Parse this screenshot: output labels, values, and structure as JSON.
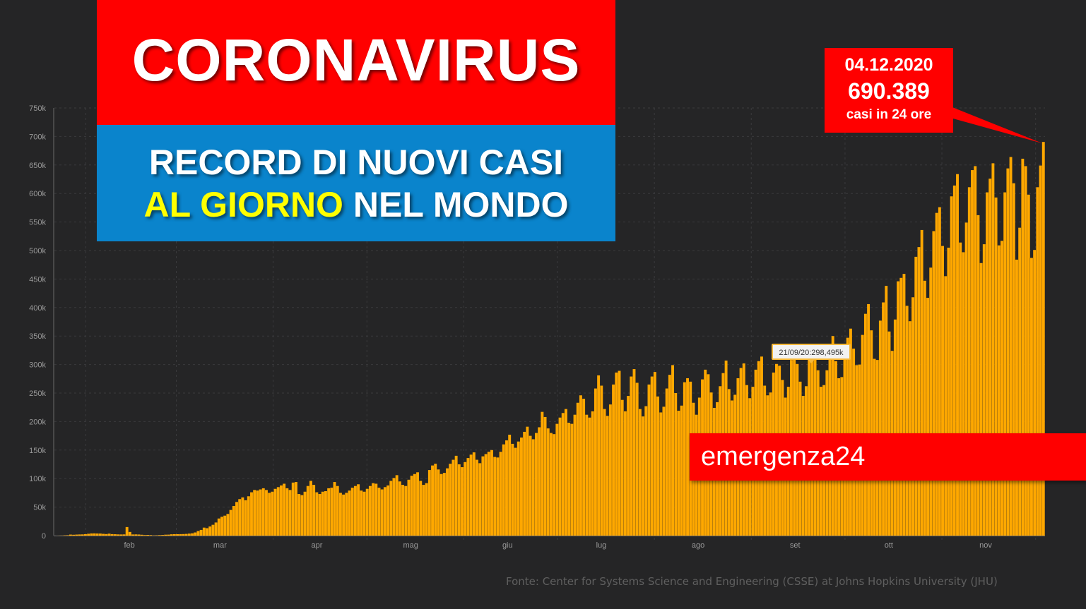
{
  "header": {
    "title": "CORONAVIRUS",
    "subtitle_line1": "RECORD DI NUOVI CASI",
    "subtitle_line2_highlight_a": "AL",
    "subtitle_line2_highlight_b": "GIORNO",
    "subtitle_line2_rest": "NEL MONDO"
  },
  "callout": {
    "date": "04.12.2020",
    "value": "690.389",
    "caption": "casi in 24 ore"
  },
  "tooltip": {
    "text": "21/09/20:298,495k"
  },
  "brand": {
    "text": "emergenza24"
  },
  "source": {
    "text": "Fonte: Center for Systems Science and Engineering (CSSE) at Johns Hopkins University (JHU)"
  },
  "colors": {
    "background": "#252526",
    "bar": "#ffa800",
    "title_red": "#ff0000",
    "subtitle_blue": "#0a84cc",
    "highlight_yellow": "#ffff00"
  },
  "chart_data": {
    "type": "bar",
    "xlabel": "",
    "ylabel": "",
    "ylim": [
      0,
      750000
    ],
    "y_ticks": [
      0,
      50000,
      100000,
      150000,
      200000,
      250000,
      300000,
      350000,
      400000,
      450000,
      500000,
      550000,
      600000,
      650000,
      700000,
      750000
    ],
    "y_tick_labels": [
      "0",
      "50k",
      "100k",
      "150k",
      "200k",
      "250k",
      "300k",
      "350k",
      "400k",
      "450k",
      "500k",
      "550k",
      "600k",
      "650k",
      "700k",
      "750k"
    ],
    "x_start": "2020-01-22",
    "x_end": "2020-12-04",
    "month_labels": [
      {
        "label": "feb",
        "date": "2020-02-15"
      },
      {
        "label": "mar",
        "date": "2020-03-15"
      },
      {
        "label": "apr",
        "date": "2020-04-15"
      },
      {
        "label": "mag",
        "date": "2020-05-15"
      },
      {
        "label": "giu",
        "date": "2020-06-15"
      },
      {
        "label": "lug",
        "date": "2020-07-15"
      },
      {
        "label": "ago",
        "date": "2020-08-15"
      },
      {
        "label": "set",
        "date": "2020-09-15"
      },
      {
        "label": "ott",
        "date": "2020-10-15"
      },
      {
        "label": "nov",
        "date": "2020-11-15"
      }
    ],
    "gridlines": true,
    "series": [
      {
        "values": [
          0,
          100,
          200,
          500,
          700,
          1800,
          1500,
          1800,
          2000,
          2100,
          2500,
          3200,
          3800,
          3900,
          3700,
          3600,
          3100,
          2700,
          3400,
          2600,
          2400,
          2100,
          2000,
          2100,
          15000,
          6400,
          2000,
          2100,
          1900,
          1500,
          1000,
          1200,
          900,
          400,
          600,
          900,
          1100,
          1600,
          1700,
          2300,
          2500,
          2500,
          2600,
          2700,
          3000,
          3500,
          4000,
          5500,
          8000,
          10000,
          14000,
          13000,
          16000,
          19000,
          23000,
          30000,
          33000,
          35000,
          38000,
          45000,
          52000,
          59000,
          64000,
          67000,
          62000,
          69000,
          76000,
          80000,
          79000,
          81000,
          83000,
          80000,
          75000,
          77000,
          82000,
          85000,
          88000,
          91000,
          83000,
          80000,
          93000,
          94000,
          73000,
          71000,
          77000,
          87000,
          96000,
          89000,
          76000,
          73000,
          77000,
          78000,
          83000,
          84000,
          94000,
          87000,
          75000,
          72000,
          75000,
          79000,
          84000,
          87000,
          90000,
          79000,
          77000,
          82000,
          87000,
          92000,
          91000,
          84000,
          81000,
          85000,
          88000,
          96000,
          101000,
          106000,
          95000,
          89000,
          87000,
          98000,
          105000,
          108000,
          111000,
          96000,
          89000,
          92000,
          115000,
          123000,
          126000,
          116000,
          108000,
          110000,
          118000,
          126000,
          133000,
          140000,
          125000,
          120000,
          129000,
          136000,
          142000,
          146000,
          133000,
          127000,
          139000,
          143000,
          147000,
          150000,
          138000,
          137000,
          147000,
          160000,
          167000,
          177000,
          161000,
          154000,
          165000,
          172000,
          182000,
          191000,
          175000,
          169000,
          180000,
          190000,
          217000,
          208000,
          188000,
          180000,
          178000,
          196000,
          207000,
          215000,
          222000,
          198000,
          196000,
          212000,
          233000,
          246000,
          240000,
          212000,
          207000,
          218000,
          258000,
          281000,
          263000,
          222000,
          210000,
          230000,
          265000,
          286000,
          289000,
          238000,
          218000,
          245000,
          279000,
          292000,
          268000,
          222000,
          209000,
          227000,
          265000,
          279000,
          287000,
          244000,
          216000,
          226000,
          258000,
          282000,
          299000,
          250000,
          219000,
          228000,
          269000,
          276000,
          270000,
          233000,
          212000,
          242000,
          274000,
          291000,
          283000,
          251000,
          224000,
          234000,
          262000,
          285000,
          307000,
          257000,
          237000,
          247000,
          276000,
          294000,
          302000,
          264000,
          241000,
          261000,
          291000,
          306000,
          314000,
          263000,
          246000,
          251000,
          286000,
          301000,
          298000,
          273000,
          242000,
          261000,
          308000,
          321000,
          301000,
          270000,
          245000,
          262000,
          318000,
          327000,
          316000,
          290000,
          261000,
          264000,
          290000,
          335000,
          350000,
          306000,
          276000,
          278000,
          321000,
          347000,
          363000,
          328000,
          299000,
          300000,
          352000,
          389000,
          406000,
          360000,
          310000,
          308000,
          377000,
          409000,
          438000,
          358000,
          324000,
          379000,
          446000,
          452000,
          459000,
          403000,
          376000,
          418000,
          489000,
          506000,
          536000,
          447000,
          417000,
          470000,
          534000,
          566000,
          576000,
          508000,
          455000,
          505000,
          595000,
          614000,
          634000,
          514000,
          497000,
          549000,
          611000,
          641000,
          648000,
          562000,
          478000,
          511000,
          602000,
          626000,
          653000,
          593000,
          509000,
          517000,
          602000,
          644000,
          664000,
          618000,
          484000,
          540000,
          661000,
          648000,
          598000,
          487000,
          501000,
          611000,
          649000,
          690389
        ]
      }
    ]
  }
}
